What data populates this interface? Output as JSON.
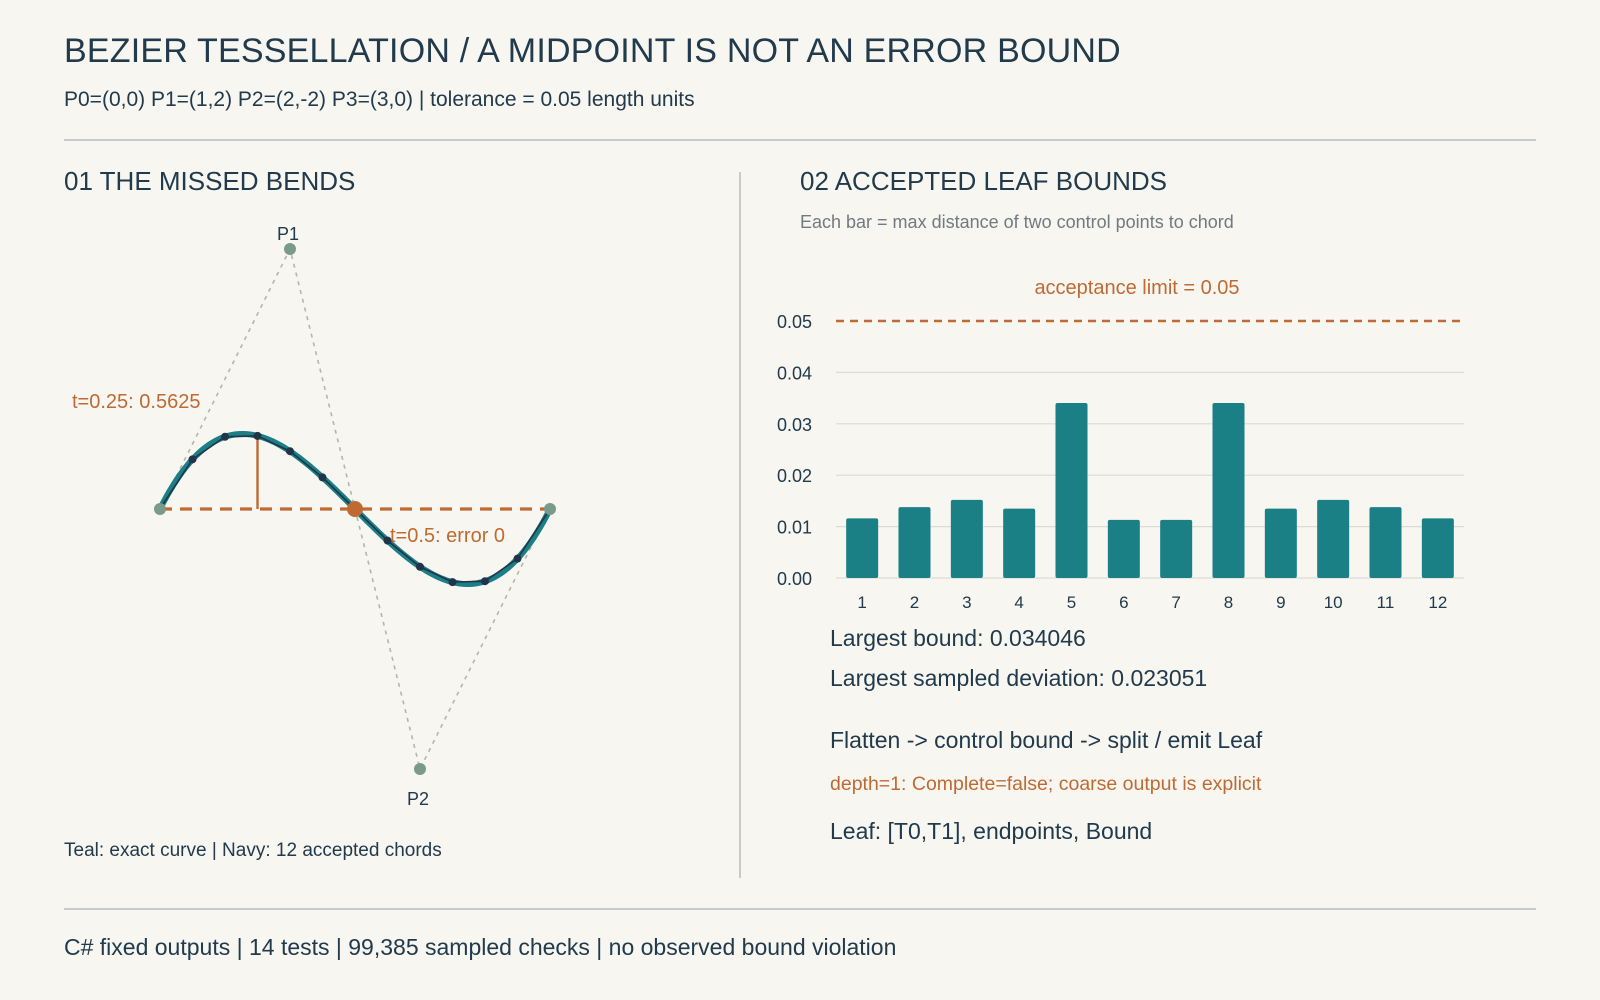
{
  "header": {
    "title": "BEZIER TESSELLATION / A MIDPOINT IS NOT AN ERROR BOUND",
    "subtitle": "P0=(0,0) P1=(1,2) P2=(2,-2) P3=(3,0) | tolerance = 0.05 length units"
  },
  "panel1": {
    "title": "01 THE MISSED BENDS",
    "control_points": [
      {
        "label": "P0",
        "x": 0,
        "y": 0,
        "labeled": false
      },
      {
        "label": "P1",
        "x": 1,
        "y": 2,
        "labeled": true
      },
      {
        "label": "P2",
        "x": 2,
        "y": -2,
        "labeled": true
      },
      {
        "label": "P3",
        "x": 3,
        "y": 0,
        "labeled": false
      }
    ],
    "annotation_quarter": "t=0.25: 0.5625",
    "annotation_mid": "t=0.5: error 0",
    "chord_count": 12,
    "legend": "Teal: exact curve | Navy: 12 accepted chords",
    "colors": {
      "curve": "#1b7f86",
      "chords": "#22344a",
      "highlight": "#c06a33",
      "control": "#7a9a8a",
      "hull": "#b4b4b4"
    }
  },
  "panel2": {
    "title": "02 ACCEPTED LEAF BOUNDS",
    "caption": "Each bar = max distance of two control points to chord",
    "limit_label": "acceptance limit = 0.05",
    "stats": {
      "largest_bound": "Largest bound: 0.034046",
      "largest_deviation": "Largest sampled deviation: 0.023051",
      "pipeline": "Flatten -> control bound -> split / emit Leaf",
      "depth_note": "depth=1: Complete=false; coarse output is explicit",
      "leaf_def": "Leaf: [T0,T1], endpoints, Bound"
    }
  },
  "chart_data": {
    "type": "bar",
    "categories": [
      "1",
      "2",
      "3",
      "4",
      "5",
      "6",
      "7",
      "8",
      "9",
      "10",
      "11",
      "12"
    ],
    "values": [
      0.0116,
      0.0138,
      0.0152,
      0.0135,
      0.034046,
      0.0113,
      0.0113,
      0.034046,
      0.0135,
      0.0152,
      0.0138,
      0.0116
    ],
    "ylim": [
      0,
      0.05
    ],
    "yticks": [
      "0.00",
      "0.01",
      "0.02",
      "0.03",
      "0.04",
      "0.05"
    ],
    "limit": 0.05,
    "grid": true,
    "colors": {
      "bar": "#1b7f86",
      "limit": "#c06a33",
      "grid": "#dcdcd6"
    }
  },
  "footer": {
    "text": "C# fixed outputs | 14 tests | 99,385 sampled checks | no observed bound violation"
  }
}
